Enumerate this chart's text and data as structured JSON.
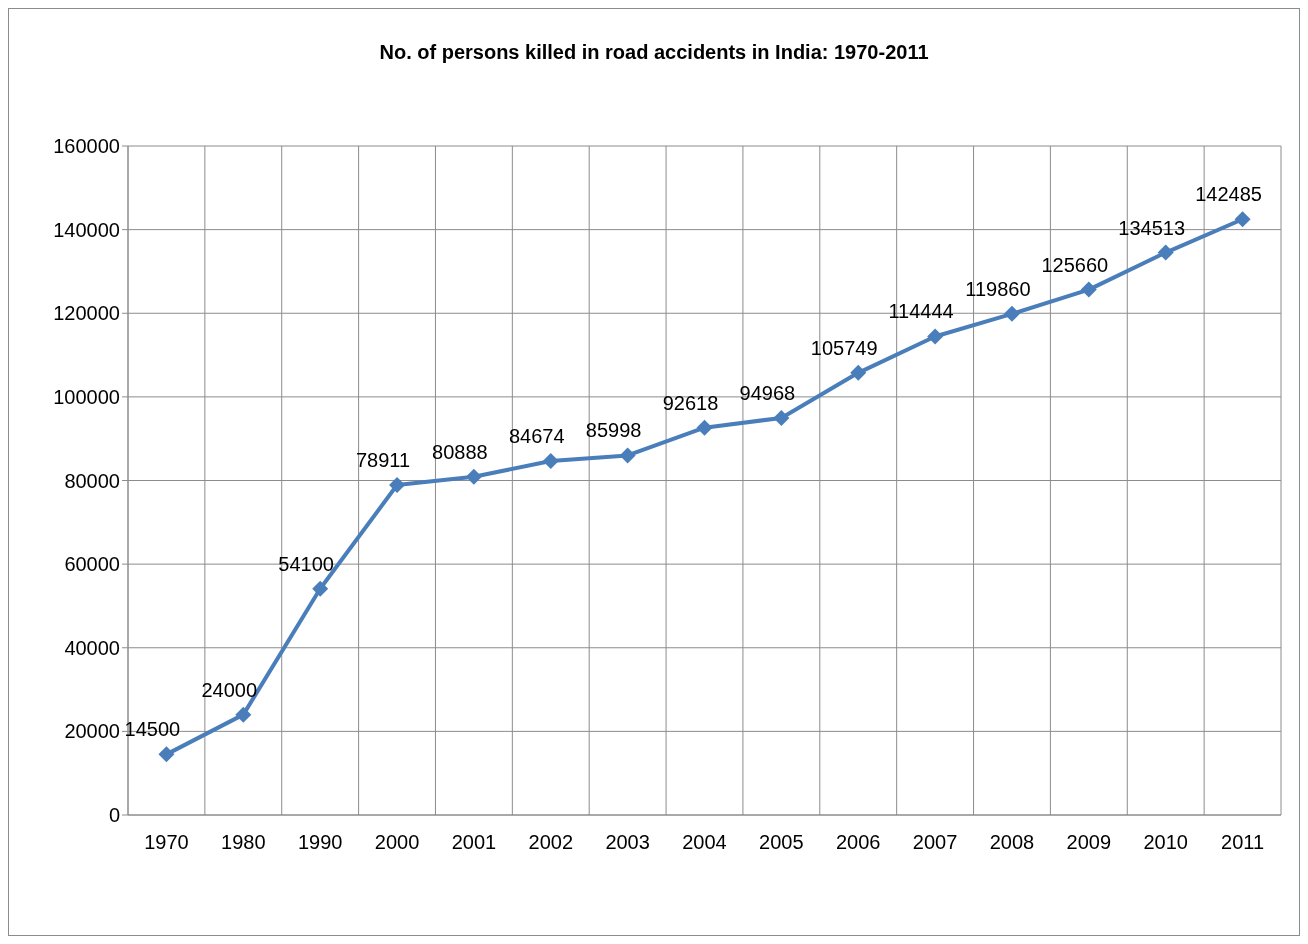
{
  "chart_data": {
    "type": "line",
    "title": "No. of persons killed in road accidents in India: 1970-2011",
    "categories": [
      "1970",
      "1980",
      "1990",
      "2000",
      "2001",
      "2002",
      "2003",
      "2004",
      "2005",
      "2006",
      "2007",
      "2008",
      "2009",
      "2010",
      "2011"
    ],
    "series": [
      {
        "color": "#4a7ebb",
        "values": [
          14500,
          24000,
          54100,
          78911,
          80888,
          84674,
          85998,
          92618,
          94968,
          105749,
          114444,
          119860,
          125660,
          134513,
          142485
        ]
      }
    ],
    "ylim": [
      0,
      160000
    ],
    "yticks": [
      0,
      20000,
      40000,
      60000,
      80000,
      100000,
      120000,
      140000,
      160000
    ],
    "grid": true,
    "data_labels": true,
    "marker": "diamond",
    "line_style": "solid",
    "legend": false
  }
}
